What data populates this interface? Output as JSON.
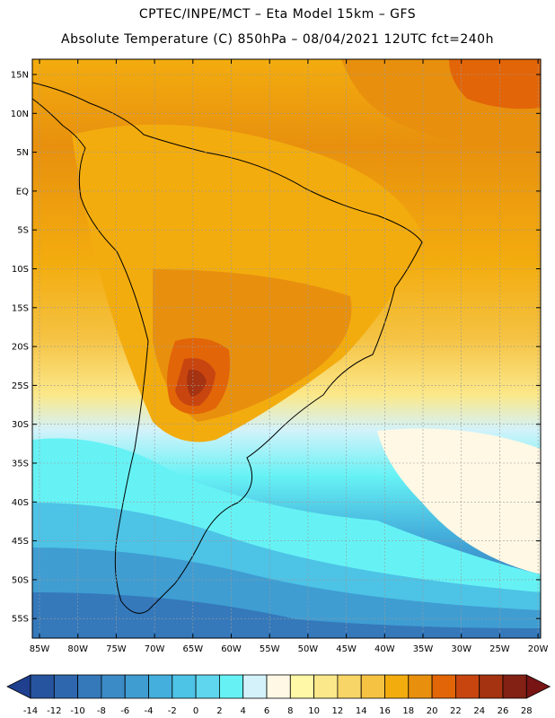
{
  "header": {
    "line1": "CPTEC/INPE/MCT –  Eta Model 15km – GFS",
    "line2": "Absolute Temperature (C) 850hPa – 08/04/2021 12UTC fct=240h"
  },
  "map": {
    "lat_labels": [
      "15N",
      "10N",
      "5N",
      "EQ",
      "5S",
      "10S",
      "15S",
      "20S",
      "25S",
      "30S",
      "35S",
      "40S",
      "45S",
      "50S",
      "55S"
    ],
    "lon_labels": [
      "85W",
      "80W",
      "75W",
      "70W",
      "65W",
      "60W",
      "55W",
      "50W",
      "45W",
      "40W",
      "35W",
      "30W",
      "25W",
      "20W"
    ]
  },
  "colorbar": {
    "labels": [
      "-14",
      "-12",
      "-10",
      "-8",
      "-6",
      "-4",
      "-2",
      "0",
      "2",
      "4",
      "6",
      "8",
      "10",
      "12",
      "14",
      "16",
      "18",
      "20",
      "22",
      "24",
      "26",
      "28"
    ],
    "colors": [
      "#1f3f8f",
      "#27549e",
      "#2e67ad",
      "#3579bb",
      "#3b8bc6",
      "#3f9dd2",
      "#44afdc",
      "#4dc3e6",
      "#5fd6ee",
      "#66f2f5",
      "#d3f2fa",
      "#fff8e4",
      "#fff8a6",
      "#fbe88a",
      "#f7d567",
      "#f5c242",
      "#f3ac0e",
      "#e8900e",
      "#e26508",
      "#c84510",
      "#a53210",
      "#832114",
      "#781414"
    ]
  }
}
